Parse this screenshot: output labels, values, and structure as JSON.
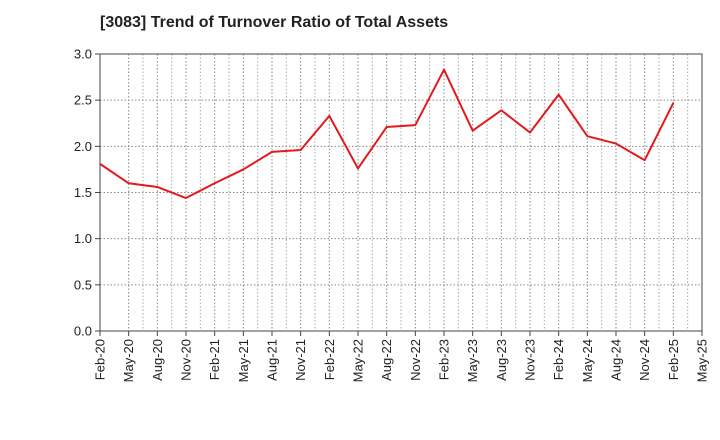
{
  "chart_data": {
    "type": "line",
    "title": "[3083]  Trend of Turnover Ratio of Total Assets",
    "xlabel": "",
    "ylabel": "",
    "ylim": [
      0,
      3.0
    ],
    "yticks": [
      "0.0",
      "0.5",
      "1.0",
      "1.5",
      "2.0",
      "2.5",
      "3.0"
    ],
    "x_tick_labels": [
      "Feb-20",
      "May-20",
      "Aug-20",
      "Nov-20",
      "Feb-21",
      "May-21",
      "Aug-21",
      "Nov-21",
      "Feb-22",
      "May-22",
      "Aug-22",
      "Nov-22",
      "Feb-23",
      "May-23",
      "Aug-23",
      "Nov-23",
      "Feb-24",
      "May-24",
      "Aug-24",
      "Nov-24",
      "Feb-25",
      "May-25"
    ],
    "grid": true,
    "line_color": "#e31a1c",
    "series": [
      {
        "x": [
          "Feb-20",
          "May-20",
          "Aug-20",
          "Nov-20",
          "Feb-21",
          "May-21",
          "Aug-21",
          "Nov-21",
          "Feb-22",
          "May-22",
          "Aug-22",
          "Nov-22",
          "Feb-23",
          "May-23",
          "Aug-23",
          "Nov-23",
          "Feb-24",
          "May-24",
          "Aug-24",
          "Nov-24",
          "Feb-25"
        ],
        "values": [
          1.81,
          1.6,
          1.56,
          1.44,
          1.6,
          1.75,
          1.94,
          1.96,
          2.33,
          1.76,
          2.21,
          2.23,
          2.83,
          2.17,
          2.39,
          2.15,
          2.56,
          2.11,
          2.03,
          1.85,
          2.47
        ]
      }
    ]
  }
}
